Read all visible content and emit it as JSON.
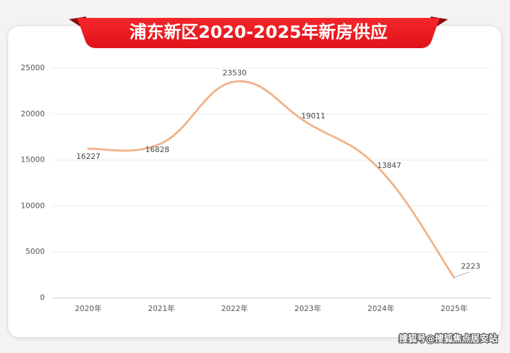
{
  "chart_data": {
    "type": "line",
    "title": "浦东新区2020-2025年新房供应",
    "categories": [
      "2020年",
      "2021年",
      "2022年",
      "2023年",
      "2024年",
      "2025年"
    ],
    "values": [
      16227,
      16828,
      23530,
      19011,
      13847,
      2223
    ],
    "color": "#f0b48a",
    "ylim": [
      0,
      25000
    ],
    "yticks": [
      0,
      5000,
      10000,
      15000,
      20000,
      25000
    ],
    "grid": true,
    "watermark": "搜狐号@搜狐焦点居安站"
  }
}
